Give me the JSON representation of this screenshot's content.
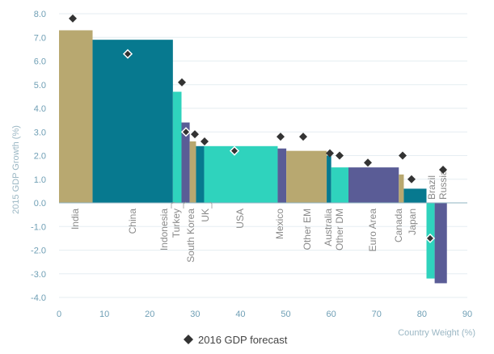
{
  "chart_data": {
    "type": "bar",
    "subtype": "variable-width",
    "xlabel": "Country Weight (%)",
    "ylabel": "2015 GDP Growth (%)",
    "xlim": [
      0,
      90
    ],
    "ylim": [
      -4.0,
      8.0
    ],
    "xticks": [
      "0",
      "10",
      "20",
      "30",
      "40",
      "50",
      "60",
      "70",
      "80",
      "90"
    ],
    "yticks": [
      "8.0",
      "7.0",
      "6.0",
      "5.0",
      "4.0",
      "3.0",
      "2.0",
      "1.0",
      "0.0",
      "-1.0",
      "-2.0",
      "-3.0",
      "-4.0"
    ],
    "series": [
      {
        "name": "2015 GDP Growth",
        "kind": "bars"
      },
      {
        "name": "2016 GDP forecast",
        "kind": "markers"
      }
    ],
    "legend": {
      "label": "2016 GDP forecast",
      "placement": "bottom"
    },
    "bars": [
      {
        "country": "India",
        "x0": 0.0,
        "x1": 7.4,
        "growth": 7.3,
        "forecast": 7.8,
        "color": "#b8a870"
      },
      {
        "country": "China",
        "x0": 7.4,
        "x1": 25.1,
        "growth": 6.9,
        "forecast": 6.3,
        "color": "#07798f"
      },
      {
        "country": "Indonesia",
        "x0": 25.1,
        "x1": 27.0,
        "growth": 4.7,
        "forecast": 5.1,
        "color": "#2fd3bd"
      },
      {
        "country": "Turkey",
        "x0": 27.0,
        "x1": 28.8,
        "growth": 3.4,
        "forecast": 3.0,
        "color": "#5a5c96"
      },
      {
        "country": "South Korea",
        "x0": 28.8,
        "x1": 30.2,
        "growth": 2.6,
        "forecast": 2.9,
        "color": "#b8a870"
      },
      {
        "country": "UK",
        "x0": 30.2,
        "x1": 32.0,
        "growth": 2.4,
        "forecast": 2.6,
        "color": "#07798f"
      },
      {
        "country": "USA",
        "x0": 32.0,
        "x1": 48.2,
        "growth": 2.4,
        "forecast": 2.2,
        "color": "#2fd3bd"
      },
      {
        "country": "Mexico",
        "x0": 48.2,
        "x1": 50.1,
        "growth": 2.3,
        "forecast": 2.8,
        "color": "#5a5c96"
      },
      {
        "country": "Other EM",
        "x0": 50.1,
        "x1": 59.0,
        "growth": 2.2,
        "forecast": 2.8,
        "color": "#b8a870"
      },
      {
        "country": "Australia",
        "x0": 59.0,
        "x1": 60.0,
        "growth": 2.0,
        "forecast": 2.1,
        "color": "#07798f"
      },
      {
        "country": "Other DM",
        "x0": 60.0,
        "x1": 63.8,
        "growth": 1.5,
        "forecast": 2.0,
        "color": "#2fd3bd"
      },
      {
        "country": "Euro Area",
        "x0": 63.8,
        "x1": 74.9,
        "growth": 1.5,
        "forecast": 1.7,
        "color": "#5a5c96"
      },
      {
        "country": "Canada",
        "x0": 74.9,
        "x1": 76.0,
        "growth": 1.2,
        "forecast": 2.0,
        "color": "#b8a870"
      },
      {
        "country": "Japan",
        "x0": 76.0,
        "x1": 81.0,
        "growth": 0.6,
        "forecast": 1.0,
        "color": "#07798f"
      },
      {
        "country": "Brazil",
        "x0": 81.0,
        "x1": 82.8,
        "growth": -3.2,
        "forecast": -1.5,
        "color": "#2fd3bd"
      },
      {
        "country": "Russia",
        "x0": 82.8,
        "x1": 85.5,
        "growth": -3.4,
        "forecast": 1.4,
        "color": "#5a5c96"
      }
    ]
  }
}
